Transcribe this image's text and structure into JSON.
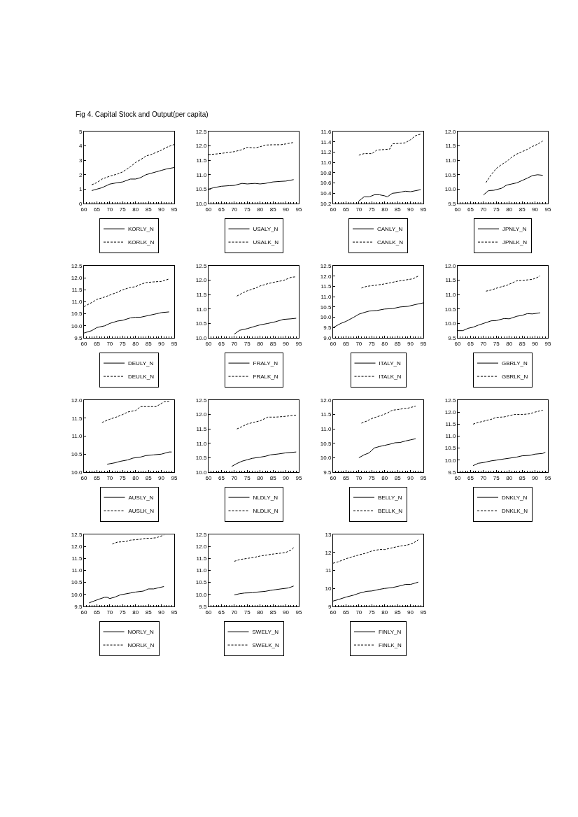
{
  "chart_data": [
    {
      "type": "line",
      "title": "Fig 4. Capital Stock and Output(per capita)",
      "xlim": [
        60,
        95
      ],
      "xticks": [
        60,
        65,
        70,
        75,
        80,
        85,
        90,
        95
      ],
      "ylim": [
        0,
        5
      ],
      "yticks": [
        0,
        1,
        2,
        3,
        4,
        5
      ],
      "grid": false,
      "legend": "bottom",
      "series": [
        {
          "name": "KORLY_N",
          "color": "#000000",
          "line_style": "solid",
          "x": [
            63,
            65,
            67,
            70,
            73,
            75,
            78,
            80,
            82,
            84,
            86,
            88,
            90,
            92,
            95
          ],
          "values": [
            0.9,
            1.0,
            1.1,
            1.35,
            1.45,
            1.5,
            1.7,
            1.7,
            1.8,
            2.0,
            2.1,
            2.2,
            2.3,
            2.4,
            2.5
          ]
        },
        {
          "name": "KORLK_N",
          "color": "#000000",
          "line_style": "dashed",
          "x": [
            63,
            65,
            67,
            70,
            73,
            75,
            78,
            80,
            82,
            84,
            86,
            88,
            90,
            92,
            95
          ],
          "values": [
            1.3,
            1.45,
            1.7,
            1.9,
            2.05,
            2.2,
            2.55,
            2.85,
            3.05,
            3.3,
            3.4,
            3.55,
            3.7,
            3.9,
            4.1
          ]
        }
      ]
    },
    {
      "type": "line",
      "xlim": [
        60,
        95
      ],
      "xticks": [
        60,
        65,
        70,
        75,
        80,
        85,
        90,
        95
      ],
      "ylim": [
        10,
        12.5
      ],
      "yticks": [
        {
          "value": 10,
          "label": "10.0"
        },
        10.5,
        {
          "value": 11,
          "label": "11.0"
        },
        11.5,
        {
          "value": 12,
          "label": "12.0"
        },
        12.5
      ],
      "grid": false,
      "legend": "bottom",
      "series": [
        {
          "name": "USALY_N",
          "color": "#000000",
          "line_style": "solid",
          "x": [
            60,
            62,
            65,
            68,
            70,
            73,
            75,
            78,
            80,
            82,
            85,
            88,
            90,
            93
          ],
          "values": [
            10.5,
            10.55,
            10.6,
            10.62,
            10.63,
            10.7,
            10.68,
            10.7,
            10.68,
            10.7,
            10.75,
            10.77,
            10.78,
            10.83
          ]
        },
        {
          "name": "USALK_N",
          "color": "#000000",
          "line_style": "dashed",
          "x": [
            60,
            63,
            65,
            68,
            70,
            73,
            75,
            78,
            80,
            82,
            85,
            88,
            90,
            93
          ],
          "values": [
            11.7,
            11.72,
            11.74,
            11.78,
            11.8,
            11.87,
            11.95,
            11.93,
            11.97,
            12.03,
            12.04,
            12.04,
            12.07,
            12.12
          ]
        }
      ]
    },
    {
      "type": "line",
      "xlim": [
        60,
        95
      ],
      "xticks": [
        60,
        65,
        70,
        75,
        80,
        85,
        90,
        95
      ],
      "ylim": [
        10.2,
        11.6
      ],
      "yticks": [
        10.2,
        10.4,
        10.6,
        10.8,
        {
          "value": 11,
          "label": "11.0"
        },
        11.2,
        11.4,
        11.6
      ],
      "grid": false,
      "legend": "bottom",
      "series": [
        {
          "name": "CANLY_N",
          "color": "#000000",
          "line_style": "solid",
          "x": [
            70,
            72,
            74,
            76,
            78,
            80,
            81,
            83,
            85,
            88,
            90,
            92,
            94
          ],
          "values": [
            10.25,
            10.33,
            10.33,
            10.37,
            10.37,
            10.35,
            10.33,
            10.4,
            10.41,
            10.44,
            10.43,
            10.45,
            10.47
          ]
        },
        {
          "name": "CANLK_N",
          "color": "#000000",
          "line_style": "dashed",
          "x": [
            70,
            72,
            75,
            77,
            80,
            82,
            83,
            86,
            88,
            90,
            92,
            94
          ],
          "values": [
            11.14,
            11.17,
            11.17,
            11.24,
            11.25,
            11.26,
            11.36,
            11.37,
            11.38,
            11.44,
            11.52,
            11.55
          ]
        }
      ]
    },
    {
      "type": "line",
      "xlim": [
        60,
        95
      ],
      "xticks": [
        60,
        65,
        70,
        75,
        80,
        85,
        90,
        95
      ],
      "ylim": [
        9.5,
        12
      ],
      "yticks": [
        9.5,
        {
          "value": 10,
          "label": "10.0"
        },
        10.5,
        {
          "value": 11,
          "label": "11.0"
        },
        11.5,
        {
          "value": 12,
          "label": "12.0"
        }
      ],
      "grid": false,
      "legend": "bottom",
      "series": [
        {
          "name": "JPNLY_N",
          "color": "#000000",
          "line_style": "solid",
          "x": [
            70,
            72,
            74,
            77,
            79,
            81,
            83,
            85,
            87,
            89,
            91,
            93
          ],
          "values": [
            9.8,
            9.95,
            9.96,
            10.03,
            10.14,
            10.18,
            10.22,
            10.3,
            10.38,
            10.47,
            10.5,
            10.48
          ]
        },
        {
          "name": "JPNLK_N",
          "color": "#000000",
          "line_style": "dashed",
          "x": [
            71,
            73,
            75,
            77,
            79,
            81,
            83,
            85,
            87,
            89,
            91,
            93
          ],
          "values": [
            10.23,
            10.5,
            10.72,
            10.85,
            10.96,
            11.11,
            11.22,
            11.3,
            11.38,
            11.48,
            11.56,
            11.67
          ]
        }
      ]
    },
    {
      "type": "line",
      "xlim": [
        60,
        95
      ],
      "xticks": [
        60,
        65,
        70,
        75,
        80,
        85,
        90,
        95
      ],
      "ylim": [
        9.5,
        12.5
      ],
      "yticks": [
        9.5,
        {
          "value": 10,
          "label": "10.0"
        },
        10.5,
        {
          "value": 11,
          "label": "11.0"
        },
        11.5,
        {
          "value": 12,
          "label": "12.0"
        },
        12.5
      ],
      "grid": false,
      "legend": "bottom",
      "series": [
        {
          "name": "DEULY_N",
          "color": "#000000",
          "line_style": "solid",
          "x": [
            60,
            63,
            65,
            68,
            70,
            73,
            75,
            78,
            80,
            82,
            85,
            88,
            90,
            93
          ],
          "values": [
            9.7,
            9.8,
            9.93,
            10.0,
            10.1,
            10.2,
            10.23,
            10.33,
            10.36,
            10.36,
            10.43,
            10.5,
            10.55,
            10.58
          ]
        },
        {
          "name": "DEULK_N",
          "color": "#000000",
          "line_style": "dashed",
          "x": [
            60,
            63,
            65,
            68,
            70,
            73,
            75,
            78,
            80,
            82,
            84,
            87,
            90,
            93
          ],
          "values": [
            10.8,
            10.97,
            11.1,
            11.2,
            11.28,
            11.4,
            11.5,
            11.6,
            11.63,
            11.73,
            11.8,
            11.83,
            11.85,
            11.95
          ]
        }
      ]
    },
    {
      "type": "line",
      "xlim": [
        60,
        95
      ],
      "xticks": [
        60,
        65,
        70,
        75,
        80,
        85,
        90,
        95
      ],
      "ylim": [
        10,
        12.5
      ],
      "yticks": [
        {
          "value": 10,
          "label": "10.0"
        },
        10.5,
        {
          "value": 11,
          "label": "11.0"
        },
        11.5,
        {
          "value": 12,
          "label": "12.0"
        },
        12.5
      ],
      "grid": false,
      "legend": "bottom",
      "series": [
        {
          "name": "FRALY_N",
          "color": "#000000",
          "line_style": "solid",
          "x": [
            70,
            72,
            75,
            78,
            80,
            83,
            86,
            89,
            92,
            94
          ],
          "values": [
            10.13,
            10.26,
            10.32,
            10.4,
            10.45,
            10.5,
            10.56,
            10.64,
            10.66,
            10.68
          ]
        },
        {
          "name": "FRALK_N",
          "color": "#000000",
          "line_style": "dashed",
          "x": [
            71,
            73,
            75,
            78,
            80,
            83,
            86,
            89,
            92,
            94
          ],
          "values": [
            11.45,
            11.55,
            11.63,
            11.72,
            11.8,
            11.88,
            11.94,
            11.99,
            12.1,
            12.12
          ]
        }
      ]
    },
    {
      "type": "line",
      "xlim": [
        60,
        95
      ],
      "xticks": [
        60,
        65,
        70,
        75,
        80,
        85,
        90,
        95
      ],
      "ylim": [
        9,
        12.5
      ],
      "yticks": [
        {
          "value": 9,
          "label": "9.0"
        },
        9.5,
        {
          "value": 10,
          "label": "10.0"
        },
        10.5,
        {
          "value": 11,
          "label": "11.0"
        },
        11.5,
        {
          "value": 12,
          "label": "12.0"
        },
        12.5
      ],
      "grid": false,
      "legend": "bottom",
      "series": [
        {
          "name": "ITALY_N",
          "color": "#000000",
          "line_style": "solid",
          "x": [
            60,
            63,
            65,
            68,
            70,
            72,
            74,
            77,
            80,
            83,
            86,
            89,
            92,
            95
          ],
          "values": [
            9.5,
            9.7,
            9.8,
            10.0,
            10.15,
            10.23,
            10.3,
            10.33,
            10.4,
            10.42,
            10.5,
            10.53,
            10.62,
            10.7
          ]
        },
        {
          "name": "ITALK_N",
          "color": "#000000",
          "line_style": "dashed",
          "x": [
            71,
            73,
            76,
            79,
            82,
            85,
            88,
            91,
            93
          ],
          "values": [
            11.42,
            11.5,
            11.55,
            11.6,
            11.67,
            11.75,
            11.81,
            11.87,
            12.0
          ]
        }
      ]
    },
    {
      "type": "line",
      "xlim": [
        60,
        95
      ],
      "xticks": [
        60,
        65,
        70,
        75,
        80,
        85,
        90,
        95
      ],
      "ylim": [
        9.5,
        12
      ],
      "yticks": [
        9.5,
        {
          "value": 10,
          "label": "10.0"
        },
        10.5,
        {
          "value": 11,
          "label": "11.0"
        },
        11.5,
        {
          "value": 12,
          "label": "12.0"
        }
      ],
      "grid": false,
      "legend": "bottom",
      "series": [
        {
          "name": "GBRLY_N",
          "color": "#000000",
          "line_style": "solid",
          "x": [
            60,
            62,
            64,
            66,
            68,
            70,
            73,
            75,
            78,
            80,
            83,
            85,
            87,
            89,
            92
          ],
          "values": [
            9.75,
            9.75,
            9.83,
            9.87,
            9.94,
            10.0,
            10.09,
            10.1,
            10.17,
            10.16,
            10.25,
            10.28,
            10.34,
            10.33,
            10.37
          ]
        },
        {
          "name": "GBRLK_N",
          "color": "#000000",
          "line_style": "dashed",
          "x": [
            71,
            73,
            76,
            79,
            81,
            83,
            86,
            89,
            91,
            92
          ],
          "values": [
            11.12,
            11.16,
            11.25,
            11.32,
            11.4,
            11.48,
            11.5,
            11.53,
            11.6,
            11.65
          ]
        }
      ]
    },
    {
      "type": "line",
      "xlim": [
        60,
        95
      ],
      "xticks": [
        60,
        65,
        70,
        75,
        80,
        85,
        90,
        95
      ],
      "ylim": [
        10,
        12
      ],
      "yticks": [
        {
          "value": 10,
          "label": "10.0"
        },
        10.5,
        {
          "value": 11,
          "label": "11.0"
        },
        11.5,
        {
          "value": 12,
          "label": "12.0"
        }
      ],
      "grid": false,
      "legend": "bottom",
      "series": [
        {
          "name": "AUSLY_N",
          "color": "#000000",
          "line_style": "solid",
          "x": [
            69,
            72,
            74,
            77,
            79,
            82,
            84,
            87,
            90,
            93,
            94
          ],
          "values": [
            10.22,
            10.26,
            10.3,
            10.34,
            10.39,
            10.42,
            10.46,
            10.48,
            10.5,
            10.56,
            10.56
          ]
        },
        {
          "name": "AUSLK_N",
          "color": "#000000",
          "line_style": "dashed",
          "x": [
            67,
            70,
            73,
            75,
            77,
            80,
            82,
            85,
            88,
            91,
            93
          ],
          "values": [
            11.38,
            11.47,
            11.54,
            11.6,
            11.67,
            11.71,
            11.82,
            11.82,
            11.82,
            11.95,
            11.97
          ]
        }
      ]
    },
    {
      "type": "line",
      "xlim": [
        60,
        95
      ],
      "xticks": [
        60,
        65,
        70,
        75,
        80,
        85,
        90,
        95
      ],
      "ylim": [
        10,
        12.5
      ],
      "yticks": [
        {
          "value": 10,
          "label": "10.0"
        },
        10.5,
        {
          "value": 11,
          "label": "11.0"
        },
        11.5,
        {
          "value": 12,
          "label": "12.0"
        },
        12.5
      ],
      "grid": false,
      "legend": "bottom",
      "series": [
        {
          "name": "NLDLY_N",
          "color": "#000000",
          "line_style": "solid",
          "x": [
            69,
            71,
            73,
            75,
            77,
            80,
            82,
            84,
            87,
            90,
            94
          ],
          "values": [
            10.2,
            10.3,
            10.38,
            10.43,
            10.48,
            10.52,
            10.55,
            10.6,
            10.63,
            10.67,
            10.7
          ]
        },
        {
          "name": "NLDLK_N",
          "color": "#000000",
          "line_style": "dashed",
          "x": [
            71,
            73,
            75,
            78,
            80,
            83,
            86,
            89,
            92,
            94
          ],
          "values": [
            11.5,
            11.58,
            11.67,
            11.74,
            11.78,
            11.91,
            11.91,
            11.93,
            11.96,
            11.98
          ]
        }
      ]
    },
    {
      "type": "line",
      "xlim": [
        60,
        95
      ],
      "xticks": [
        60,
        65,
        70,
        75,
        80,
        85,
        90,
        95
      ],
      "ylim": [
        9.5,
        12
      ],
      "yticks": [
        9.5,
        {
          "value": 10,
          "label": "10.0"
        },
        10.5,
        {
          "value": 11,
          "label": "11.0"
        },
        11.5,
        {
          "value": 12,
          "label": "12.0"
        }
      ],
      "grid": false,
      "legend": "bottom",
      "series": [
        {
          "name": "BELLY_N",
          "color": "#000000",
          "line_style": "solid",
          "x": [
            70,
            72,
            74,
            76,
            78,
            80,
            82,
            84,
            86,
            88,
            90,
            92
          ],
          "values": [
            10.0,
            10.1,
            10.17,
            10.34,
            10.39,
            10.43,
            10.47,
            10.52,
            10.53,
            10.58,
            10.62,
            10.66
          ]
        },
        {
          "name": "BELLK_N",
          "color": "#000000",
          "line_style": "dashed",
          "x": [
            71,
            73,
            75,
            77,
            79,
            81,
            83,
            85,
            87,
            89,
            92
          ],
          "values": [
            11.2,
            11.27,
            11.36,
            11.42,
            11.48,
            11.55,
            11.65,
            11.67,
            11.7,
            11.72,
            11.79
          ]
        }
      ]
    },
    {
      "type": "line",
      "xlim": [
        60,
        95
      ],
      "xticks": [
        60,
        65,
        70,
        75,
        80,
        85,
        90,
        95
      ],
      "ylim": [
        9.5,
        12.5
      ],
      "yticks": [
        9.5,
        {
          "value": 10,
          "label": "10.0"
        },
        10.5,
        {
          "value": 11,
          "label": "11.0"
        },
        11.5,
        {
          "value": 12,
          "label": "12.0"
        },
        12.5
      ],
      "grid": false,
      "legend": "bottom",
      "series": [
        {
          "name": "DNKLY_N",
          "color": "#000000",
          "line_style": "solid",
          "x": [
            66,
            68,
            70,
            73,
            75,
            78,
            80,
            83,
            85,
            88,
            90,
            93,
            94
          ],
          "values": [
            9.77,
            9.87,
            9.9,
            9.97,
            10.0,
            10.05,
            10.08,
            10.13,
            10.18,
            10.2,
            10.25,
            10.28,
            10.33
          ]
        },
        {
          "name": "DNKLK_N",
          "color": "#000000",
          "line_style": "dashed",
          "x": [
            66,
            68,
            70,
            73,
            75,
            78,
            80,
            82,
            85,
            88,
            90,
            93
          ],
          "values": [
            11.5,
            11.57,
            11.62,
            11.7,
            11.78,
            11.8,
            11.85,
            11.9,
            11.9,
            11.93,
            12.0,
            12.08
          ]
        }
      ]
    },
    {
      "type": "line",
      "xlim": [
        60,
        95
      ],
      "xticks": [
        60,
        65,
        70,
        75,
        80,
        85,
        90,
        95
      ],
      "ylim": [
        9.5,
        12.5
      ],
      "yticks": [
        9.5,
        {
          "value": 10,
          "label": "10.0"
        },
        10.5,
        {
          "value": 11,
          "label": "11.0"
        },
        11.5,
        {
          "value": 12,
          "label": "12.0"
        },
        12.5
      ],
      "grid": false,
      "legend": "bottom",
      "series": [
        {
          "name": "NORLY_N",
          "color": "#000000",
          "line_style": "solid",
          "x": [
            62,
            64,
            66,
            68,
            69,
            70,
            72,
            74,
            76,
            78,
            80,
            83,
            85,
            87,
            89,
            91
          ],
          "values": [
            9.65,
            9.73,
            9.81,
            9.88,
            9.88,
            9.83,
            9.89,
            9.98,
            10.02,
            10.06,
            10.1,
            10.14,
            10.23,
            10.23,
            10.28,
            10.33
          ]
        },
        {
          "name": "NORLK_N",
          "color": "#000000",
          "line_style": "dashed",
          "x": [
            71,
            73,
            76,
            78,
            80,
            82,
            84,
            86,
            88,
            91
          ],
          "values": [
            12.1,
            12.18,
            12.2,
            12.26,
            12.28,
            12.3,
            12.34,
            12.34,
            12.36,
            12.47
          ]
        }
      ]
    },
    {
      "type": "line",
      "xlim": [
        60,
        95
      ],
      "xticks": [
        60,
        65,
        70,
        75,
        80,
        85,
        90,
        95
      ],
      "ylim": [
        9.5,
        12.5
      ],
      "yticks": [
        9.5,
        {
          "value": 10,
          "label": "10.0"
        },
        10.5,
        {
          "value": 11,
          "label": "11.0"
        },
        11.5,
        {
          "value": 12,
          "label": "12.0"
        },
        12.5
      ],
      "grid": false,
      "legend": "bottom",
      "series": [
        {
          "name": "SWELY_N",
          "color": "#000000",
          "line_style": "solid",
          "x": [
            70,
            72,
            74,
            77,
            79,
            82,
            84,
            86,
            88,
            91,
            93
          ],
          "values": [
            9.98,
            10.03,
            10.06,
            10.07,
            10.1,
            10.13,
            10.17,
            10.2,
            10.23,
            10.27,
            10.35
          ]
        },
        {
          "name": "SWELK_N",
          "color": "#000000",
          "line_style": "dashed",
          "x": [
            70,
            72,
            75,
            78,
            80,
            83,
            85,
            88,
            90,
            92,
            93
          ],
          "values": [
            11.38,
            11.45,
            11.5,
            11.55,
            11.6,
            11.65,
            11.68,
            11.72,
            11.75,
            11.85,
            11.95
          ]
        }
      ]
    },
    {
      "type": "line",
      "xlim": [
        60,
        95
      ],
      "xticks": [
        60,
        65,
        70,
        75,
        80,
        85,
        90,
        95
      ],
      "ylim": [
        9,
        13
      ],
      "yticks": [
        9,
        10,
        11,
        12,
        13
      ],
      "grid": false,
      "legend": "bottom",
      "series": [
        {
          "name": "FINLY_N",
          "color": "#000000",
          "line_style": "solid",
          "x": [
            60,
            62,
            65,
            68,
            70,
            73,
            75,
            78,
            80,
            83,
            85,
            88,
            90,
            93
          ],
          "values": [
            9.3,
            9.38,
            9.52,
            9.63,
            9.73,
            9.84,
            9.86,
            9.95,
            10.0,
            10.05,
            10.11,
            10.22,
            10.22,
            10.35
          ]
        },
        {
          "name": "FINLK_N",
          "color": "#000000",
          "line_style": "dashed",
          "x": [
            60,
            62,
            65,
            68,
            70,
            73,
            75,
            78,
            80,
            83,
            86,
            89,
            91,
            93
          ],
          "values": [
            11.4,
            11.48,
            11.65,
            11.78,
            11.86,
            11.97,
            12.08,
            12.16,
            12.16,
            12.26,
            12.35,
            12.42,
            12.51,
            12.7
          ]
        }
      ]
    }
  ]
}
